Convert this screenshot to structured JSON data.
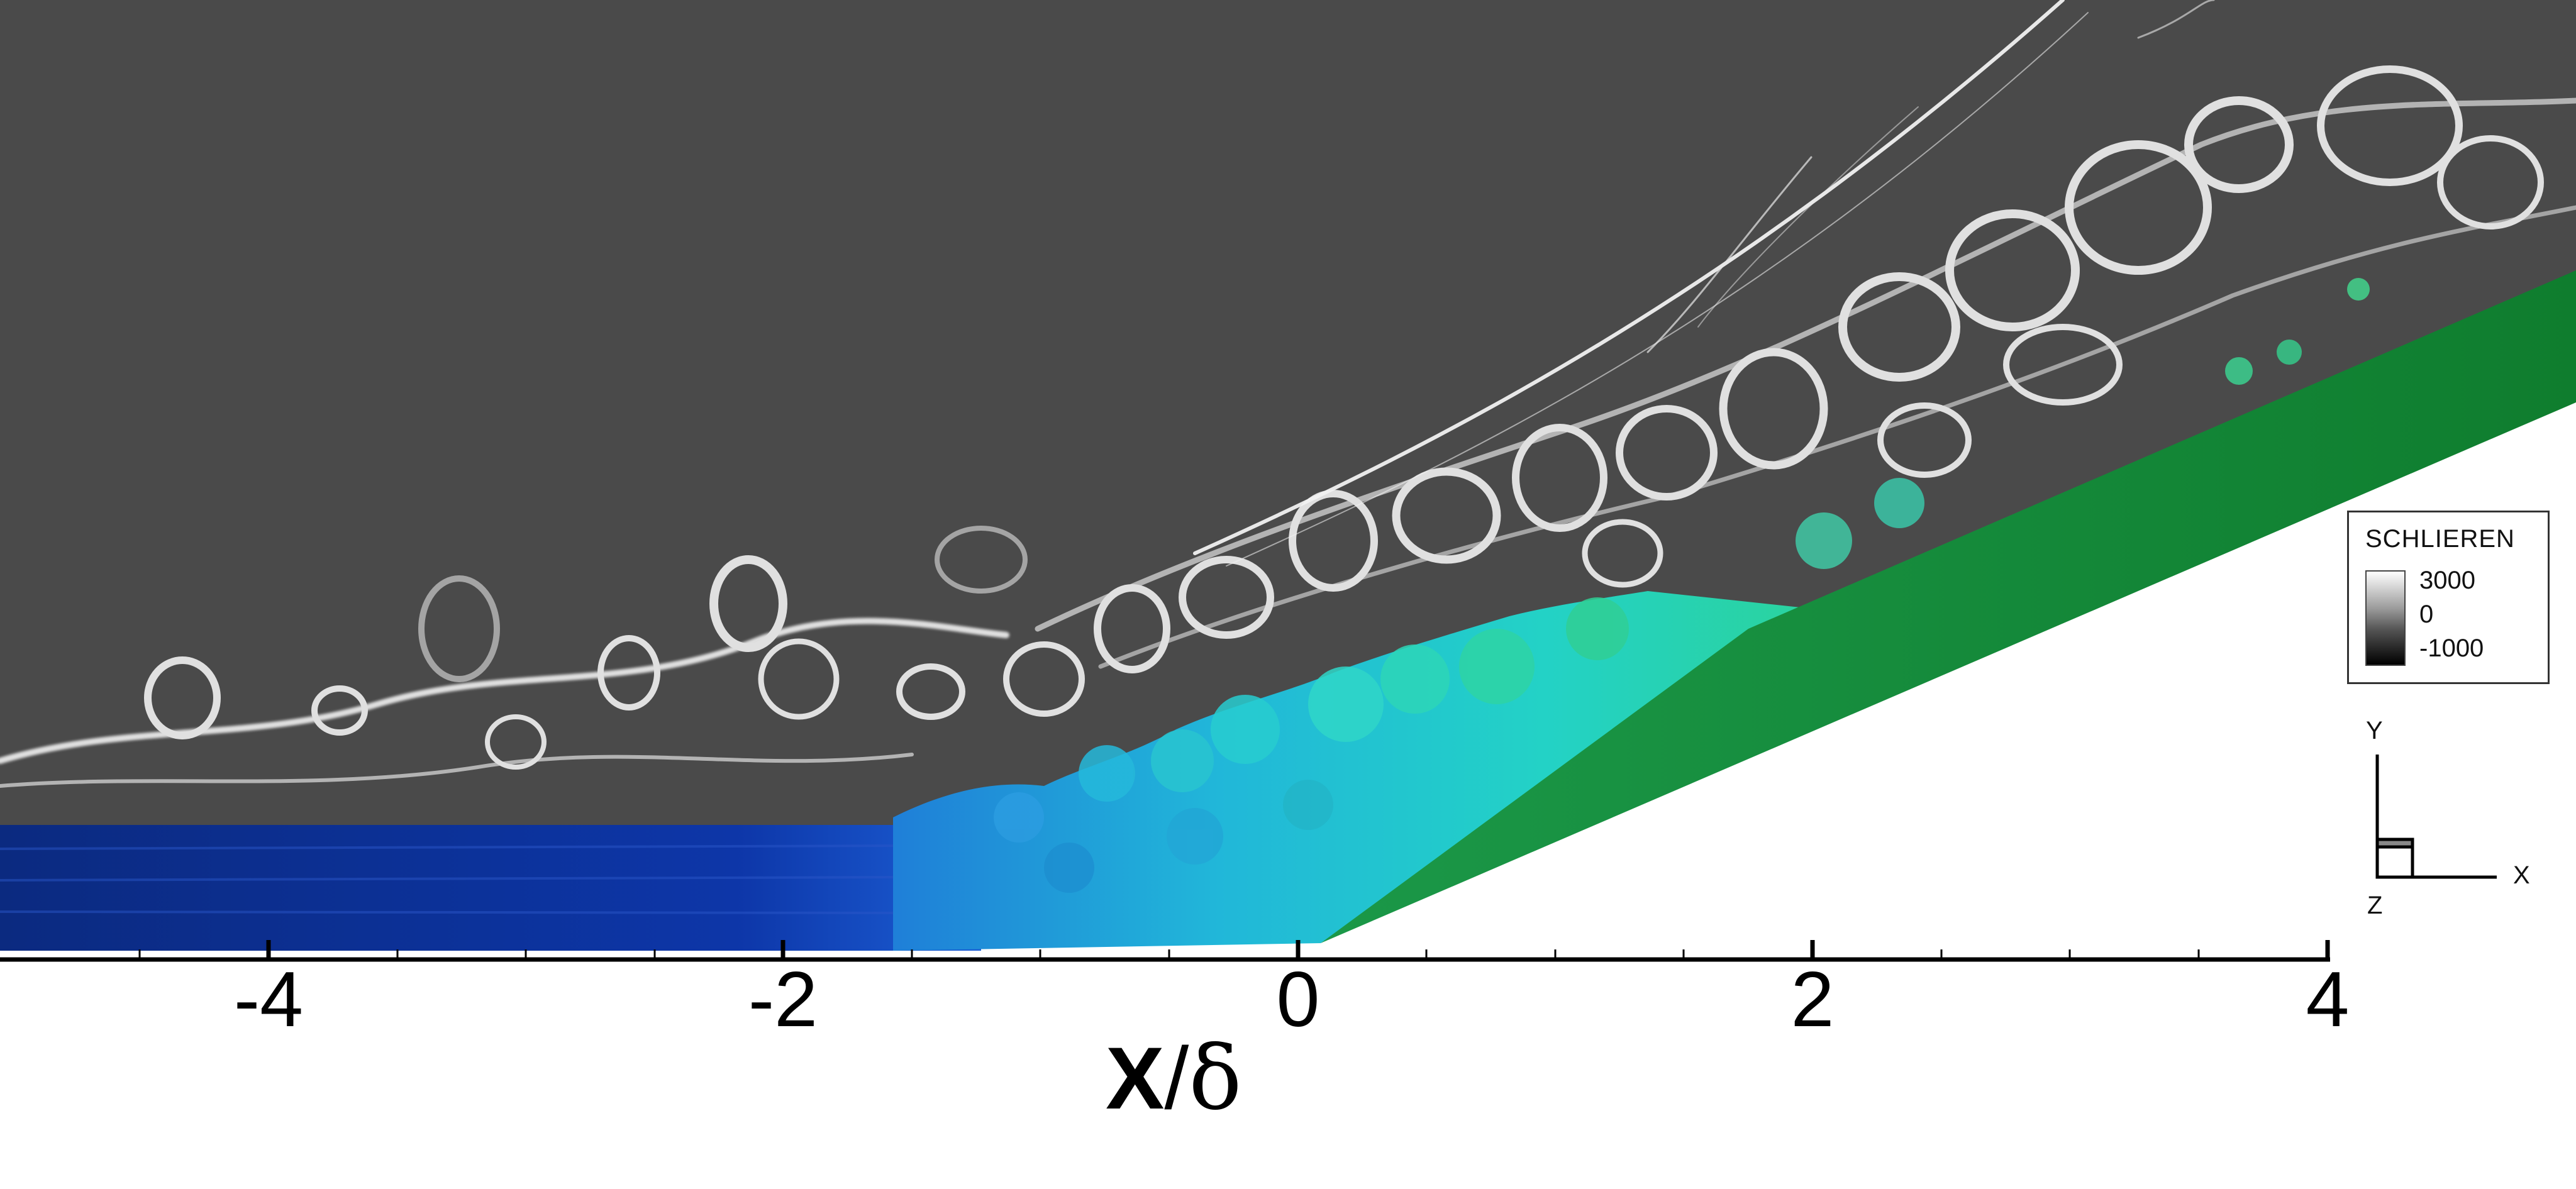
{
  "axis": {
    "title_symbol": "X",
    "title_slash": "/",
    "title_delta": "δ",
    "ticks": [
      "-4",
      "-2",
      "0",
      "2",
      "4"
    ],
    "range": [
      -5,
      4
    ]
  },
  "legend": {
    "title": "SCHLIEREN",
    "max_label": "3000",
    "mid_label": "0",
    "min_label": "-1000"
  },
  "triad": {
    "y": "Y",
    "x": "X",
    "z": "Z"
  },
  "colors": {
    "background": "#4a4a4a",
    "blue_surface": "#0a2f8c",
    "cyan_surface": "#1cc6c6",
    "green_wall": "#15863a"
  }
}
